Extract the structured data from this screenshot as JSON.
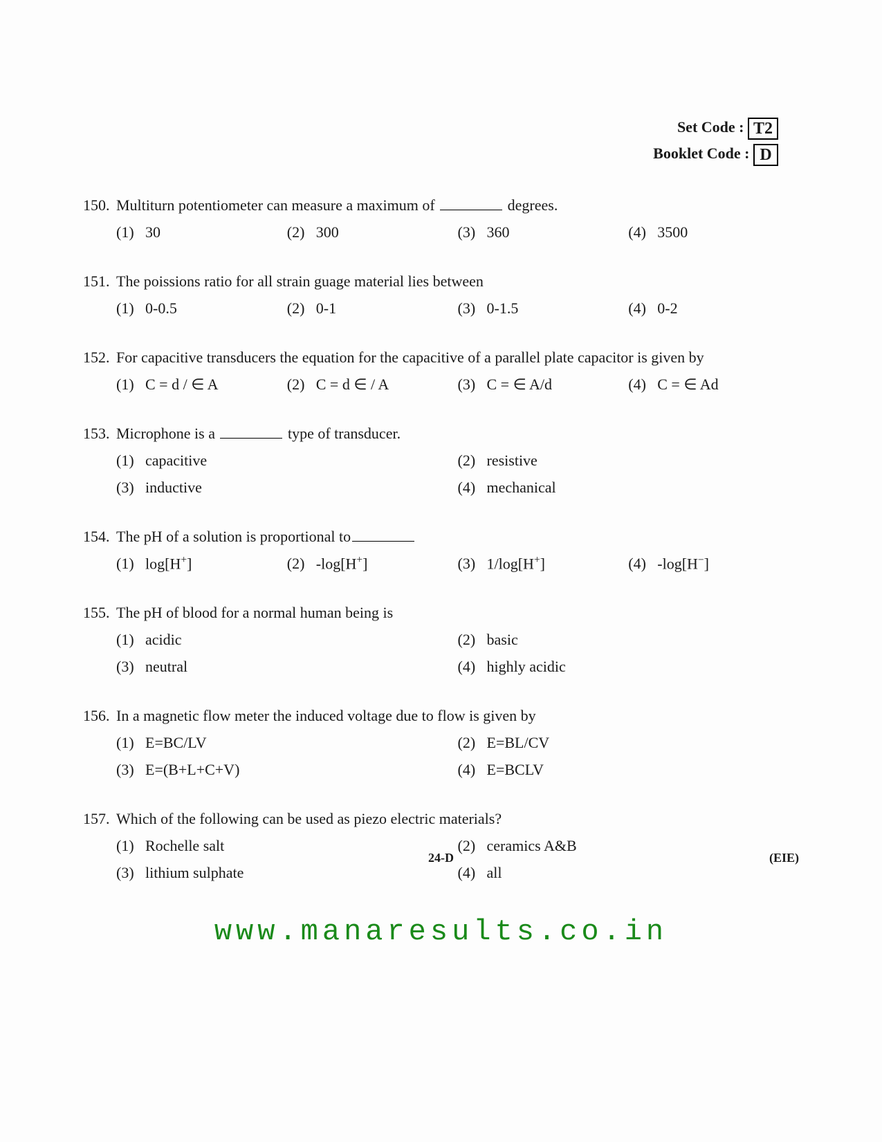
{
  "header": {
    "setCodeLabel": "Set Code :",
    "setCode": "T2",
    "bookletCodeLabel": "Booklet Code :",
    "bookletCode": "D"
  },
  "questions": [
    {
      "num": "150.",
      "pre": "Multiturn potentiometer can measure a maximum of ",
      "post": " degrees.",
      "layout": "4col",
      "opts": [
        {
          "n": "(1)",
          "t": "30"
        },
        {
          "n": "(2)",
          "t": "300"
        },
        {
          "n": "(3)",
          "t": "360"
        },
        {
          "n": "(4)",
          "t": "3500"
        }
      ]
    },
    {
      "num": "151.",
      "text": "The poissions ratio for all strain guage material lies between",
      "layout": "4col",
      "opts": [
        {
          "n": "(1)",
          "t": "0-0.5"
        },
        {
          "n": "(2)",
          "t": "0-1"
        },
        {
          "n": "(3)",
          "t": "0-1.5"
        },
        {
          "n": "(4)",
          "t": "0-2"
        }
      ]
    },
    {
      "num": "152.",
      "text": "For capacitive transducers the equation for the capacitive of a parallel plate capacitor is given by",
      "layout": "4col",
      "opts": [
        {
          "n": "(1)",
          "t": "C = d / ∈ A"
        },
        {
          "n": "(2)",
          "t": "C = d ∈ / A"
        },
        {
          "n": "(3)",
          "t": "C = ∈ A/d"
        },
        {
          "n": "(4)",
          "t": "C = ∈ Ad"
        }
      ]
    },
    {
      "num": "153.",
      "pre": "Microphone is a ",
      "post": " type of transducer.",
      "layout": "2col",
      "opts": [
        {
          "n": "(1)",
          "t": "capacitive"
        },
        {
          "n": "(2)",
          "t": "resistive"
        },
        {
          "n": "(3)",
          "t": "inductive"
        },
        {
          "n": "(4)",
          "t": "mechanical"
        }
      ]
    },
    {
      "num": "154.",
      "pre": "The pH of a solution is proportional to",
      "post": "",
      "layout": "4col",
      "opts": [
        {
          "n": "(1)",
          "html": "log[H<sup>+</sup>]"
        },
        {
          "n": "(2)",
          "html": "-log[H<sup>+</sup>]"
        },
        {
          "n": "(3)",
          "html": "1/log[H<sup>+</sup>]"
        },
        {
          "n": "(4)",
          "html": "-log[H<sup>−</sup>]"
        }
      ]
    },
    {
      "num": "155.",
      "text": "The pH of blood for a normal human being is",
      "layout": "2col",
      "opts": [
        {
          "n": "(1)",
          "t": "acidic"
        },
        {
          "n": "(2)",
          "t": "basic"
        },
        {
          "n": "(3)",
          "t": "neutral"
        },
        {
          "n": "(4)",
          "t": "highly acidic"
        }
      ]
    },
    {
      "num": "156.",
      "text": "In a magnetic flow meter the induced voltage due to flow is given by",
      "layout": "2col",
      "opts": [
        {
          "n": "(1)",
          "t": "E=BC/LV"
        },
        {
          "n": "(2)",
          "t": "E=BL/CV"
        },
        {
          "n": "(3)",
          "t": "E=(B+L+C+V)"
        },
        {
          "n": "(4)",
          "t": "E=BCLV"
        }
      ]
    },
    {
      "num": "157.",
      "text": "Which of the following can be used as piezo electric materials?",
      "layout": "2col",
      "opts": [
        {
          "n": "(1)",
          "t": "Rochelle salt"
        },
        {
          "n": "(2)",
          "t": "ceramics A&B"
        },
        {
          "n": "(3)",
          "t": "lithium sulphate"
        },
        {
          "n": "(4)",
          "t": "all"
        }
      ]
    }
  ],
  "footer": {
    "pageNum": "24-D",
    "right": "(EIE)"
  },
  "watermark": "www.manaresults.co.in",
  "style": {
    "background": "#fdfdfd",
    "textColor": "#1a1a1a",
    "watermarkColor": "#1a8a1a",
    "bodyFont": "Times New Roman",
    "watermarkFont": "Courier New",
    "bodyFontSize": 22,
    "watermarkFontSize": 42
  }
}
